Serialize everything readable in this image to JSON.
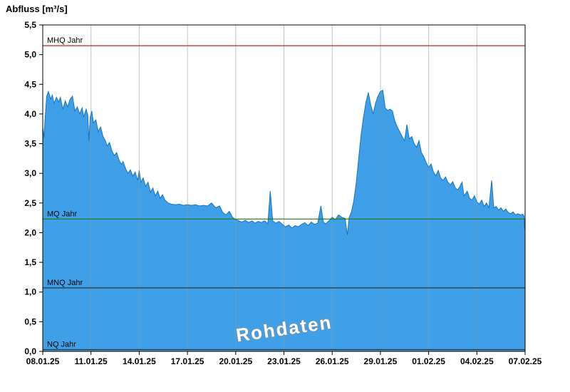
{
  "chart_data": {
    "type": "area",
    "title": "Abfluss [m³/s]",
    "watermark": "Rohdaten",
    "xlabel": "",
    "ylabel": "Abfluss [m³/s]",
    "xlim": [
      0,
      30
    ],
    "ylim": [
      0,
      5.5
    ],
    "grid": "vertical-only",
    "legend": "none",
    "colors": {
      "area_fill": "#3FA0E8",
      "area_stroke": "#1673C2",
      "grid": "#8f969c",
      "axis": "#000000",
      "watermark_fill": "#ffffff",
      "watermark_outline": "#8a8a8a"
    },
    "x_ticks": [
      {
        "day": 0,
        "label": "08.01.25"
      },
      {
        "day": 3,
        "label": "11.01.25"
      },
      {
        "day": 6,
        "label": "14.01.25"
      },
      {
        "day": 9,
        "label": "17.01.25"
      },
      {
        "day": 12,
        "label": "20.01.25"
      },
      {
        "day": 15,
        "label": "23.01.25"
      },
      {
        "day": 18,
        "label": "26.01.25"
      },
      {
        "day": 21,
        "label": "29.01.25"
      },
      {
        "day": 24,
        "label": "01.02.25"
      },
      {
        "day": 27,
        "label": "04.02.25"
      },
      {
        "day": 30,
        "label": "07.02.25"
      }
    ],
    "y_ticks": [
      {
        "value": 0,
        "label": "0,0"
      },
      {
        "value": 0.5,
        "label": "0,5"
      },
      {
        "value": 1,
        "label": "1,0"
      },
      {
        "value": 1.5,
        "label": "1,5"
      },
      {
        "value": 2,
        "label": "2,0"
      },
      {
        "value": 2.5,
        "label": "2,5"
      },
      {
        "value": 3,
        "label": "3,0"
      },
      {
        "value": 3.5,
        "label": "3,5"
      },
      {
        "value": 4,
        "label": "4,0"
      },
      {
        "value": 4.5,
        "label": "4,5"
      },
      {
        "value": 5,
        "label": "5,0"
      },
      {
        "value": 5.5,
        "label": "5,5"
      }
    ],
    "reference_lines": [
      {
        "label": "MHQ Jahr",
        "value": 5.15,
        "color": "#cc2222"
      },
      {
        "label": "MQ Jahr",
        "value": 2.23,
        "color": "#1a7a1a"
      },
      {
        "label": "MNQ Jahr",
        "value": 1.07,
        "color": "#303030"
      },
      {
        "label": "NQ Jahr",
        "value": 0.03,
        "color": "#303030"
      }
    ],
    "series": [
      {
        "name": "Rohdaten",
        "points": [
          [
            0,
            3.78
          ],
          [
            0.08,
            3.6
          ],
          [
            0.15,
            3.95
          ],
          [
            0.25,
            4.3
          ],
          [
            0.35,
            4.38
          ],
          [
            0.5,
            4.25
          ],
          [
            0.6,
            4.32
          ],
          [
            0.7,
            4.18
          ],
          [
            0.85,
            4.28
          ],
          [
            1,
            4.2
          ],
          [
            1.1,
            4.28
          ],
          [
            1.25,
            4.08
          ],
          [
            1.4,
            4.22
          ],
          [
            1.55,
            4.12
          ],
          [
            1.7,
            4.25
          ],
          [
            1.85,
            4.3
          ],
          [
            2,
            4.05
          ],
          [
            2.15,
            4.12
          ],
          [
            2.3,
            4
          ],
          [
            2.45,
            4.1
          ],
          [
            2.55,
            3.95
          ],
          [
            2.7,
            4.08
          ],
          [
            2.8,
            3.98
          ],
          [
            2.87,
            3.55
          ],
          [
            2.95,
            3.95
          ],
          [
            3.05,
            4.05
          ],
          [
            3.15,
            3.85
          ],
          [
            3.3,
            3.9
          ],
          [
            3.45,
            3.7
          ],
          [
            3.6,
            3.78
          ],
          [
            3.75,
            3.62
          ],
          [
            3.9,
            3.55
          ],
          [
            4,
            3.46
          ],
          [
            4.15,
            3.52
          ],
          [
            4.3,
            3.38
          ],
          [
            4.45,
            3.3
          ],
          [
            4.6,
            3.35
          ],
          [
            4.75,
            3.22
          ],
          [
            4.9,
            3.15
          ],
          [
            5,
            3.2
          ],
          [
            5.15,
            3.08
          ],
          [
            5.3,
            3
          ],
          [
            5.45,
            3.06
          ],
          [
            5.6,
            2.95
          ],
          [
            5.75,
            3.02
          ],
          [
            5.9,
            2.88
          ],
          [
            6,
            3.05
          ],
          [
            6.1,
            2.85
          ],
          [
            6.25,
            2.92
          ],
          [
            6.4,
            2.78
          ],
          [
            6.55,
            2.85
          ],
          [
            6.7,
            2.68
          ],
          [
            6.85,
            2.75
          ],
          [
            7,
            2.62
          ],
          [
            7.15,
            2.7
          ],
          [
            7.3,
            2.58
          ],
          [
            7.45,
            2.64
          ],
          [
            7.6,
            2.55
          ],
          [
            7.8,
            2.5
          ],
          [
            8,
            2.48
          ],
          [
            8.25,
            2.47
          ],
          [
            8.5,
            2.48
          ],
          [
            8.75,
            2.46
          ],
          [
            9,
            2.47
          ],
          [
            9.25,
            2.46
          ],
          [
            9.5,
            2.47
          ],
          [
            9.75,
            2.45
          ],
          [
            10,
            2.46
          ],
          [
            10.25,
            2.45
          ],
          [
            10.5,
            2.5
          ],
          [
            10.75,
            2.42
          ],
          [
            11,
            2.45
          ],
          [
            11.2,
            2.34
          ],
          [
            11.4,
            2.3
          ],
          [
            11.6,
            2.36
          ],
          [
            11.8,
            2.26
          ],
          [
            12,
            2.22
          ],
          [
            12.2,
            2.2
          ],
          [
            12.4,
            2.18
          ],
          [
            12.6,
            2.21
          ],
          [
            12.8,
            2.17
          ],
          [
            13,
            2.2
          ],
          [
            13.2,
            2.16
          ],
          [
            13.4,
            2.19
          ],
          [
            13.6,
            2.17
          ],
          [
            13.8,
            2.2
          ],
          [
            14,
            2.15
          ],
          [
            14.15,
            2.7
          ],
          [
            14.3,
            2.2
          ],
          [
            14.5,
            2.16
          ],
          [
            14.7,
            2.19
          ],
          [
            14.9,
            2.14
          ],
          [
            15.1,
            2.1
          ],
          [
            15.3,
            2.13
          ],
          [
            15.5,
            2.08
          ],
          [
            15.7,
            2.12
          ],
          [
            15.9,
            2.1
          ],
          [
            16.1,
            2.14
          ],
          [
            16.3,
            2.17
          ],
          [
            16.5,
            2.12
          ],
          [
            16.7,
            2.18
          ],
          [
            16.9,
            2.14
          ],
          [
            17.1,
            2.16
          ],
          [
            17.3,
            2.45
          ],
          [
            17.45,
            2.18
          ],
          [
            17.6,
            2.15
          ],
          [
            17.8,
            2.2
          ],
          [
            18,
            2.26
          ],
          [
            18.2,
            2.22
          ],
          [
            18.4,
            2.3
          ],
          [
            18.6,
            2.26
          ],
          [
            18.8,
            2.24
          ],
          [
            18.95,
            1.96
          ],
          [
            19.05,
            2.25
          ],
          [
            19.2,
            2.35
          ],
          [
            19.35,
            2.55
          ],
          [
            19.5,
            2.85
          ],
          [
            19.65,
            3.25
          ],
          [
            19.8,
            3.65
          ],
          [
            19.95,
            3.95
          ],
          [
            20.1,
            4.2
          ],
          [
            20.25,
            4.36
          ],
          [
            20.4,
            4.15
          ],
          [
            20.55,
            4
          ],
          [
            20.7,
            4.18
          ],
          [
            20.85,
            4.3
          ],
          [
            21,
            4.38
          ],
          [
            21.15,
            4.4
          ],
          [
            21.3,
            4.1
          ],
          [
            21.45,
            4.06
          ],
          [
            21.6,
            4.08
          ],
          [
            21.75,
            4.05
          ],
          [
            21.9,
            3.88
          ],
          [
            22.05,
            3.78
          ],
          [
            22.2,
            3.7
          ],
          [
            22.35,
            3.62
          ],
          [
            22.5,
            3.55
          ],
          [
            22.65,
            3.82
          ],
          [
            22.8,
            3.58
          ],
          [
            22.95,
            3.62
          ],
          [
            23.1,
            3.5
          ],
          [
            23.25,
            3.44
          ],
          [
            23.4,
            3.55
          ],
          [
            23.55,
            3.35
          ],
          [
            23.7,
            3.28
          ],
          [
            23.85,
            3.18
          ],
          [
            24,
            3.1
          ],
          [
            24.15,
            3.16
          ],
          [
            24.3,
            3.02
          ],
          [
            24.45,
            2.96
          ],
          [
            24.6,
            3.05
          ],
          [
            24.75,
            2.92
          ],
          [
            24.9,
            2.88
          ],
          [
            25.05,
            2.94
          ],
          [
            25.2,
            2.85
          ],
          [
            25.35,
            2.8
          ],
          [
            25.5,
            2.86
          ],
          [
            25.65,
            2.76
          ],
          [
            25.8,
            2.72
          ],
          [
            25.95,
            2.78
          ],
          [
            26.08,
            2.85
          ],
          [
            26.2,
            2.62
          ],
          [
            26.4,
            2.7
          ],
          [
            26.55,
            2.58
          ],
          [
            26.7,
            2.55
          ],
          [
            26.85,
            2.62
          ],
          [
            27,
            2.52
          ],
          [
            27.15,
            2.48
          ],
          [
            27.3,
            2.55
          ],
          [
            27.45,
            2.44
          ],
          [
            27.6,
            2.5
          ],
          [
            27.75,
            2.42
          ],
          [
            27.92,
            2.88
          ],
          [
            28.05,
            2.42
          ],
          [
            28.2,
            2.44
          ],
          [
            28.35,
            2.38
          ],
          [
            28.5,
            2.42
          ],
          [
            28.65,
            2.36
          ],
          [
            28.8,
            2.4
          ],
          [
            28.95,
            2.34
          ],
          [
            29.1,
            2.32
          ],
          [
            29.25,
            2.35
          ],
          [
            29.4,
            2.3
          ],
          [
            29.55,
            2.32
          ],
          [
            29.7,
            2.3
          ],
          [
            29.85,
            2.31
          ],
          [
            29.93,
            2.28
          ],
          [
            29.97,
            2.05
          ],
          [
            30,
            2.28
          ]
        ]
      }
    ]
  }
}
